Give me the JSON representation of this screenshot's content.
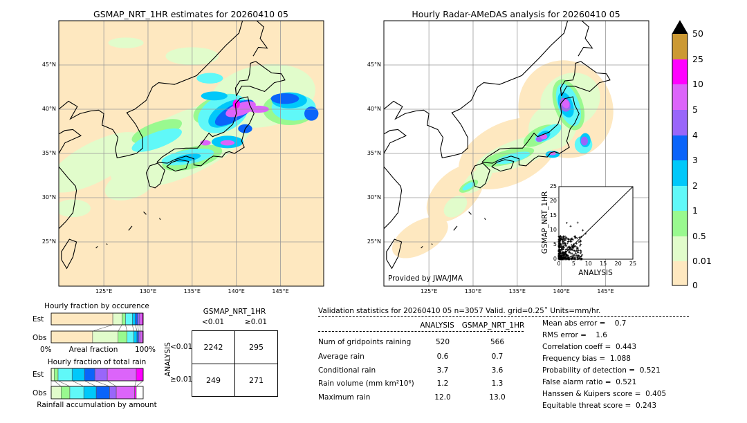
{
  "left_map": {
    "title": "GSMAP_NRT_1HR estimates for 20260410 05",
    "lon_ticks": [
      "125°E",
      "130°E",
      "135°E",
      "140°E",
      "145°E"
    ],
    "lat_ticks": [
      "45°N",
      "40°N",
      "35°N",
      "30°N",
      "25°N"
    ]
  },
  "right_map": {
    "title": "Hourly Radar-AMeDAS analysis for 20260410 05",
    "lon_ticks": [
      "125°E",
      "130°E",
      "135°E",
      "140°E",
      "145°E"
    ],
    "lat_ticks": [
      "45°N",
      "40°N",
      "35°N",
      "30°N",
      "25°N"
    ],
    "credit": "Provided by JWA/JMA"
  },
  "colorbar": {
    "units": "mm/hr",
    "labels": [
      "0",
      "0.01",
      "0.5",
      "1",
      "2",
      "3",
      "4",
      "5",
      "10",
      "25",
      "50"
    ],
    "colors": [
      "#fee8c0",
      "#e1fccb",
      "#99f98f",
      "#60f8f8",
      "#00c8fa",
      "#0a64fa",
      "#9966fa",
      "#dc64fa",
      "#ff00ff",
      "#cc9933"
    ],
    "over_color": "#000000"
  },
  "chart_data": [
    {
      "type": "scatter",
      "xlabel": "ANALYSIS",
      "ylabel": "GSMAP_NRT_1HR",
      "xlim": [
        0,
        25
      ],
      "ylim": [
        0,
        25
      ],
      "x_ticks": [
        "0",
        "5",
        "10",
        "15",
        "20",
        "25"
      ],
      "y_ticks": [
        "0",
        "5",
        "10",
        "15",
        "20",
        "25"
      ],
      "reference_line": "y=x",
      "marker": "+"
    },
    {
      "type": "bar",
      "title": "Hourly fraction by occurence",
      "xlabel": "Areal fraction",
      "x_ticks": [
        "0%",
        "100%"
      ],
      "categories": [
        "Est",
        "Obs"
      ],
      "stacked_percent": {
        "Est": [
          67,
          10,
          3.75,
          7.5,
          3.25,
          2.5,
          2.25,
          2.5,
          1.25,
          0
        ],
        "Obs": [
          45,
          27.75,
          9.75,
          7.25,
          3.5,
          1.75,
          1.75,
          2.5,
          0.75,
          0
        ]
      }
    },
    {
      "type": "bar",
      "title": "Hourly fraction of total rain",
      "xlabel": "Rainfall accumulation by amount",
      "categories": [
        "Est",
        "Obs"
      ],
      "stacked_percent": {
        "Est": [
          0,
          3.25,
          4.25,
          15.25,
          13.5,
          11.25,
          13.5,
          31.5,
          7.5,
          0
        ],
        "Obs": [
          0,
          10.75,
          9.5,
          15.25,
          13.5,
          14.5,
          7.25,
          20,
          1.75,
          0
        ]
      }
    }
  ],
  "contingency": {
    "col_title": "GSMAP_NRT_1HR",
    "row_title": "ANALYSIS",
    "col_labels": [
      "<0.01",
      "≥0.01"
    ],
    "row_labels": [
      "<0.01",
      "≥0.01"
    ],
    "cells": [
      [
        "2242",
        "295"
      ],
      [
        "249",
        "271"
      ]
    ]
  },
  "stats": {
    "title": "Validation statistics for 20260410 05  n=3057 Valid. grid=0.25˚ Units=mm/hr.",
    "col_headers": [
      "ANALYSIS",
      "GSMAP_NRT_1HR"
    ],
    "rows": [
      {
        "label": "Num of gridpoints raining",
        "analysis": "520",
        "gsmap": "566"
      },
      {
        "label": "Average rain",
        "analysis": "0.6",
        "gsmap": "0.7"
      },
      {
        "label": "Conditional rain",
        "analysis": "3.7",
        "gsmap": "3.6"
      },
      {
        "label": "Rain volume (mm km²10⁶)",
        "analysis": "1.2",
        "gsmap": "1.3"
      },
      {
        "label": "Maximum rain",
        "analysis": "12.0",
        "gsmap": "13.0"
      }
    ],
    "scores": [
      "Mean abs error =    0.7",
      "RMS error =    1.6",
      "Correlation coeff =  0.443",
      "Frequency bias =  1.088",
      "Probability of detection =  0.521",
      "False alarm ratio =  0.521",
      "Hanssen & Kuipers score =  0.405",
      "Equitable threat score =  0.243"
    ]
  }
}
